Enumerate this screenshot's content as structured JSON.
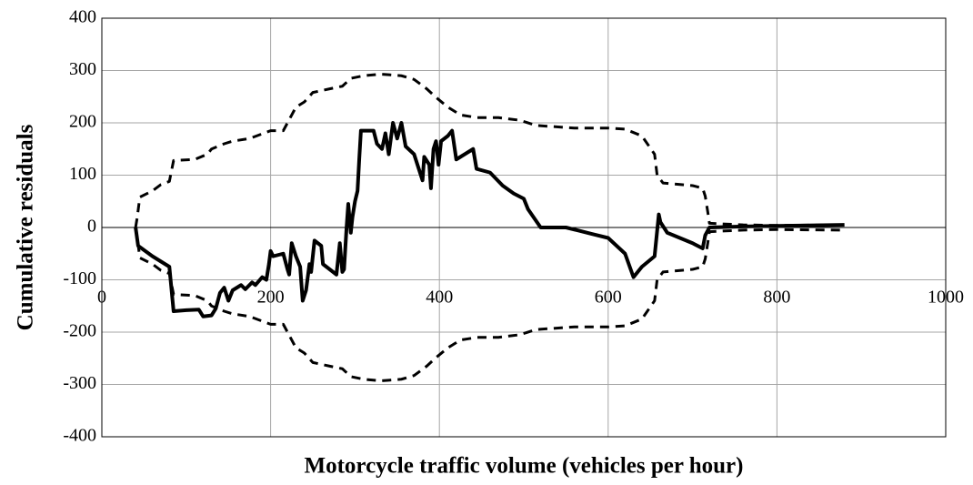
{
  "chart_data": {
    "type": "line",
    "xlabel": "Motorcycle traffic volume (vehicles per hour)",
    "ylabel": "Cumulative residuals",
    "xlim": [
      0,
      1000
    ],
    "xticks": [
      0,
      200,
      400,
      600,
      800,
      1000
    ],
    "ylim": [
      -400,
      400
    ],
    "yticks": [
      -400,
      -300,
      -200,
      -100,
      0,
      100,
      200,
      300,
      400
    ],
    "grid": true,
    "series": [
      {
        "color": "#000000",
        "dashed": false,
        "x": [
          40,
          43,
          60,
          65,
          75,
          80,
          85,
          100,
          115,
          120,
          130,
          135,
          140,
          145,
          150,
          155,
          165,
          170,
          178,
          182,
          190,
          195,
          198,
          200,
          203,
          215,
          220,
          222,
          225,
          230,
          235,
          238,
          242,
          246,
          248,
          252,
          260,
          262,
          278,
          282,
          285,
          287,
          290,
          292,
          295,
          297,
          300,
          303,
          305,
          307,
          318,
          322,
          326,
          332,
          336,
          340,
          345,
          350,
          355,
          360,
          370,
          378,
          380,
          382,
          388,
          390,
          393,
          396,
          399,
          402,
          410,
          415,
          420,
          425,
          440,
          444,
          460,
          475,
          488,
          500,
          505,
          520,
          550,
          580,
          600,
          620,
          630,
          640,
          655,
          660,
          662,
          670,
          700,
          712,
          715,
          720,
          760,
          800,
          880
        ],
        "values": [
          0,
          -35,
          -55,
          -60,
          -70,
          -75,
          -160,
          -158,
          -157,
          -170,
          -168,
          -155,
          -125,
          -115,
          -140,
          -120,
          -110,
          -118,
          -105,
          -110,
          -95,
          -100,
          -70,
          -45,
          -55,
          -50,
          -80,
          -90,
          -30,
          -55,
          -75,
          -140,
          -120,
          -70,
          -85,
          -25,
          -35,
          -70,
          -90,
          -30,
          -85,
          -80,
          0,
          45,
          -10,
          20,
          50,
          70,
          130,
          185,
          185,
          185,
          160,
          150,
          180,
          140,
          200,
          170,
          200,
          155,
          140,
          100,
          90,
          135,
          120,
          75,
          150,
          165,
          120,
          165,
          175,
          185,
          130,
          135,
          150,
          112,
          105,
          80,
          65,
          55,
          35,
          0,
          0,
          -12,
          -20,
          -50,
          -95,
          -75,
          -55,
          25,
          10,
          -10,
          -30,
          -40,
          -15,
          0,
          2,
          3,
          5
        ]
      },
      {
        "color": "#000000",
        "dashed": true,
        "x": [
          40,
          42,
          45,
          60,
          70,
          80,
          85,
          110,
          125,
          130,
          145,
          155,
          175,
          200,
          215,
          220,
          230,
          240,
          250,
          270,
          285,
          295,
          310,
          330,
          340,
          355,
          370,
          385,
          395,
          410,
          425,
          445,
          470,
          495,
          515,
          560,
          600,
          620,
          640,
          655,
          658,
          665,
          700,
          712,
          715,
          718,
          720,
          760,
          800,
          880
        ],
        "values": [
          0,
          20,
          58,
          70,
          82,
          88,
          128,
          130,
          140,
          150,
          160,
          165,
          170,
          185,
          185,
          200,
          230,
          240,
          258,
          265,
          270,
          285,
          290,
          293,
          292,
          290,
          283,
          265,
          250,
          230,
          215,
          210,
          210,
          205,
          195,
          190,
          190,
          188,
          175,
          140,
          100,
          85,
          80,
          75,
          60,
          30,
          8,
          5,
          4,
          5
        ]
      },
      {
        "color": "#000000",
        "dashed": true,
        "x": [
          40,
          42,
          45,
          60,
          70,
          80,
          85,
          110,
          125,
          130,
          145,
          155,
          175,
          200,
          215,
          220,
          230,
          240,
          250,
          270,
          285,
          295,
          310,
          330,
          340,
          355,
          370,
          385,
          395,
          410,
          425,
          445,
          470,
          495,
          515,
          560,
          600,
          620,
          640,
          655,
          658,
          665,
          700,
          712,
          715,
          718,
          720,
          760,
          800,
          880
        ],
        "values": [
          0,
          -20,
          -58,
          -70,
          -82,
          -88,
          -128,
          -130,
          -140,
          -150,
          -160,
          -165,
          -170,
          -185,
          -185,
          -200,
          -230,
          -240,
          -258,
          -265,
          -270,
          -285,
          -290,
          -293,
          -292,
          -290,
          -283,
          -265,
          -250,
          -230,
          -215,
          -210,
          -210,
          -205,
          -195,
          -190,
          -190,
          -188,
          -175,
          -140,
          -100,
          -85,
          -80,
          -75,
          -60,
          -30,
          -8,
          -5,
          -4,
          -5
        ]
      }
    ]
  }
}
